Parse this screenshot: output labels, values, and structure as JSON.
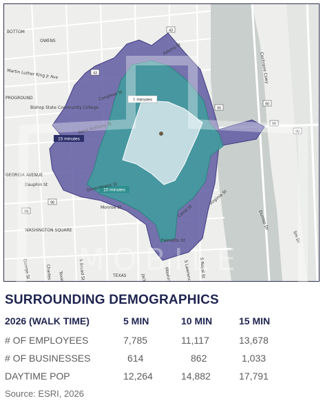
{
  "map": {
    "street_labels": [
      "BOTTOM",
      "OWENS",
      "Martin Luther King Jr Ave",
      "PROGROUND",
      "Bishop State Community College",
      "Congress St",
      "Saint Anthony St",
      "GEORGIA AVENUE",
      "Dauphin St",
      "Government St",
      "Monroe St",
      "Palmetto St",
      "WASHINGTON SQUARE",
      "Charles St",
      "S Broad St",
      "TEXAS",
      "Canal St",
      "S Royal St",
      "Adams St",
      "Cochrane Cswy",
      "Virginia St",
      "Dunlap Dr",
      "Sm Dr",
      "George St",
      "Texas St",
      "Jackson St",
      "Washington Ave",
      "S Lawrence St"
    ],
    "route_shields": [
      "43",
      "43",
      "90",
      "98",
      "98",
      "90",
      "90",
      "90"
    ],
    "isochrone_labels": {
      "five": "5 minutes",
      "ten": "10 minutes",
      "fifteen": "15 minutes"
    },
    "colors": {
      "fifteen": "#5f5aa2",
      "ten": "#3f9e9d",
      "five": "#cfe3e9",
      "water": "#c9cfcd"
    },
    "watermark": "MOBILE"
  },
  "section_title": "SURROUNDING DEMOGRAPHICS",
  "table": {
    "headers": [
      "2026 (WALK TIME)",
      "5 MIN",
      "10 MIN",
      "15 MIN"
    ],
    "rows": [
      {
        "label": "# OF EMPLOYEES",
        "values": [
          "7,785",
          "11,117",
          "13,678"
        ]
      },
      {
        "label": "# OF BUSINESSES",
        "values": [
          "614",
          "862",
          "1,033"
        ]
      },
      {
        "label": "DAYTIME POP",
        "values": [
          "12,264",
          "14,882",
          "17,791"
        ]
      }
    ]
  },
  "source": "Source: ESRI, 2026"
}
